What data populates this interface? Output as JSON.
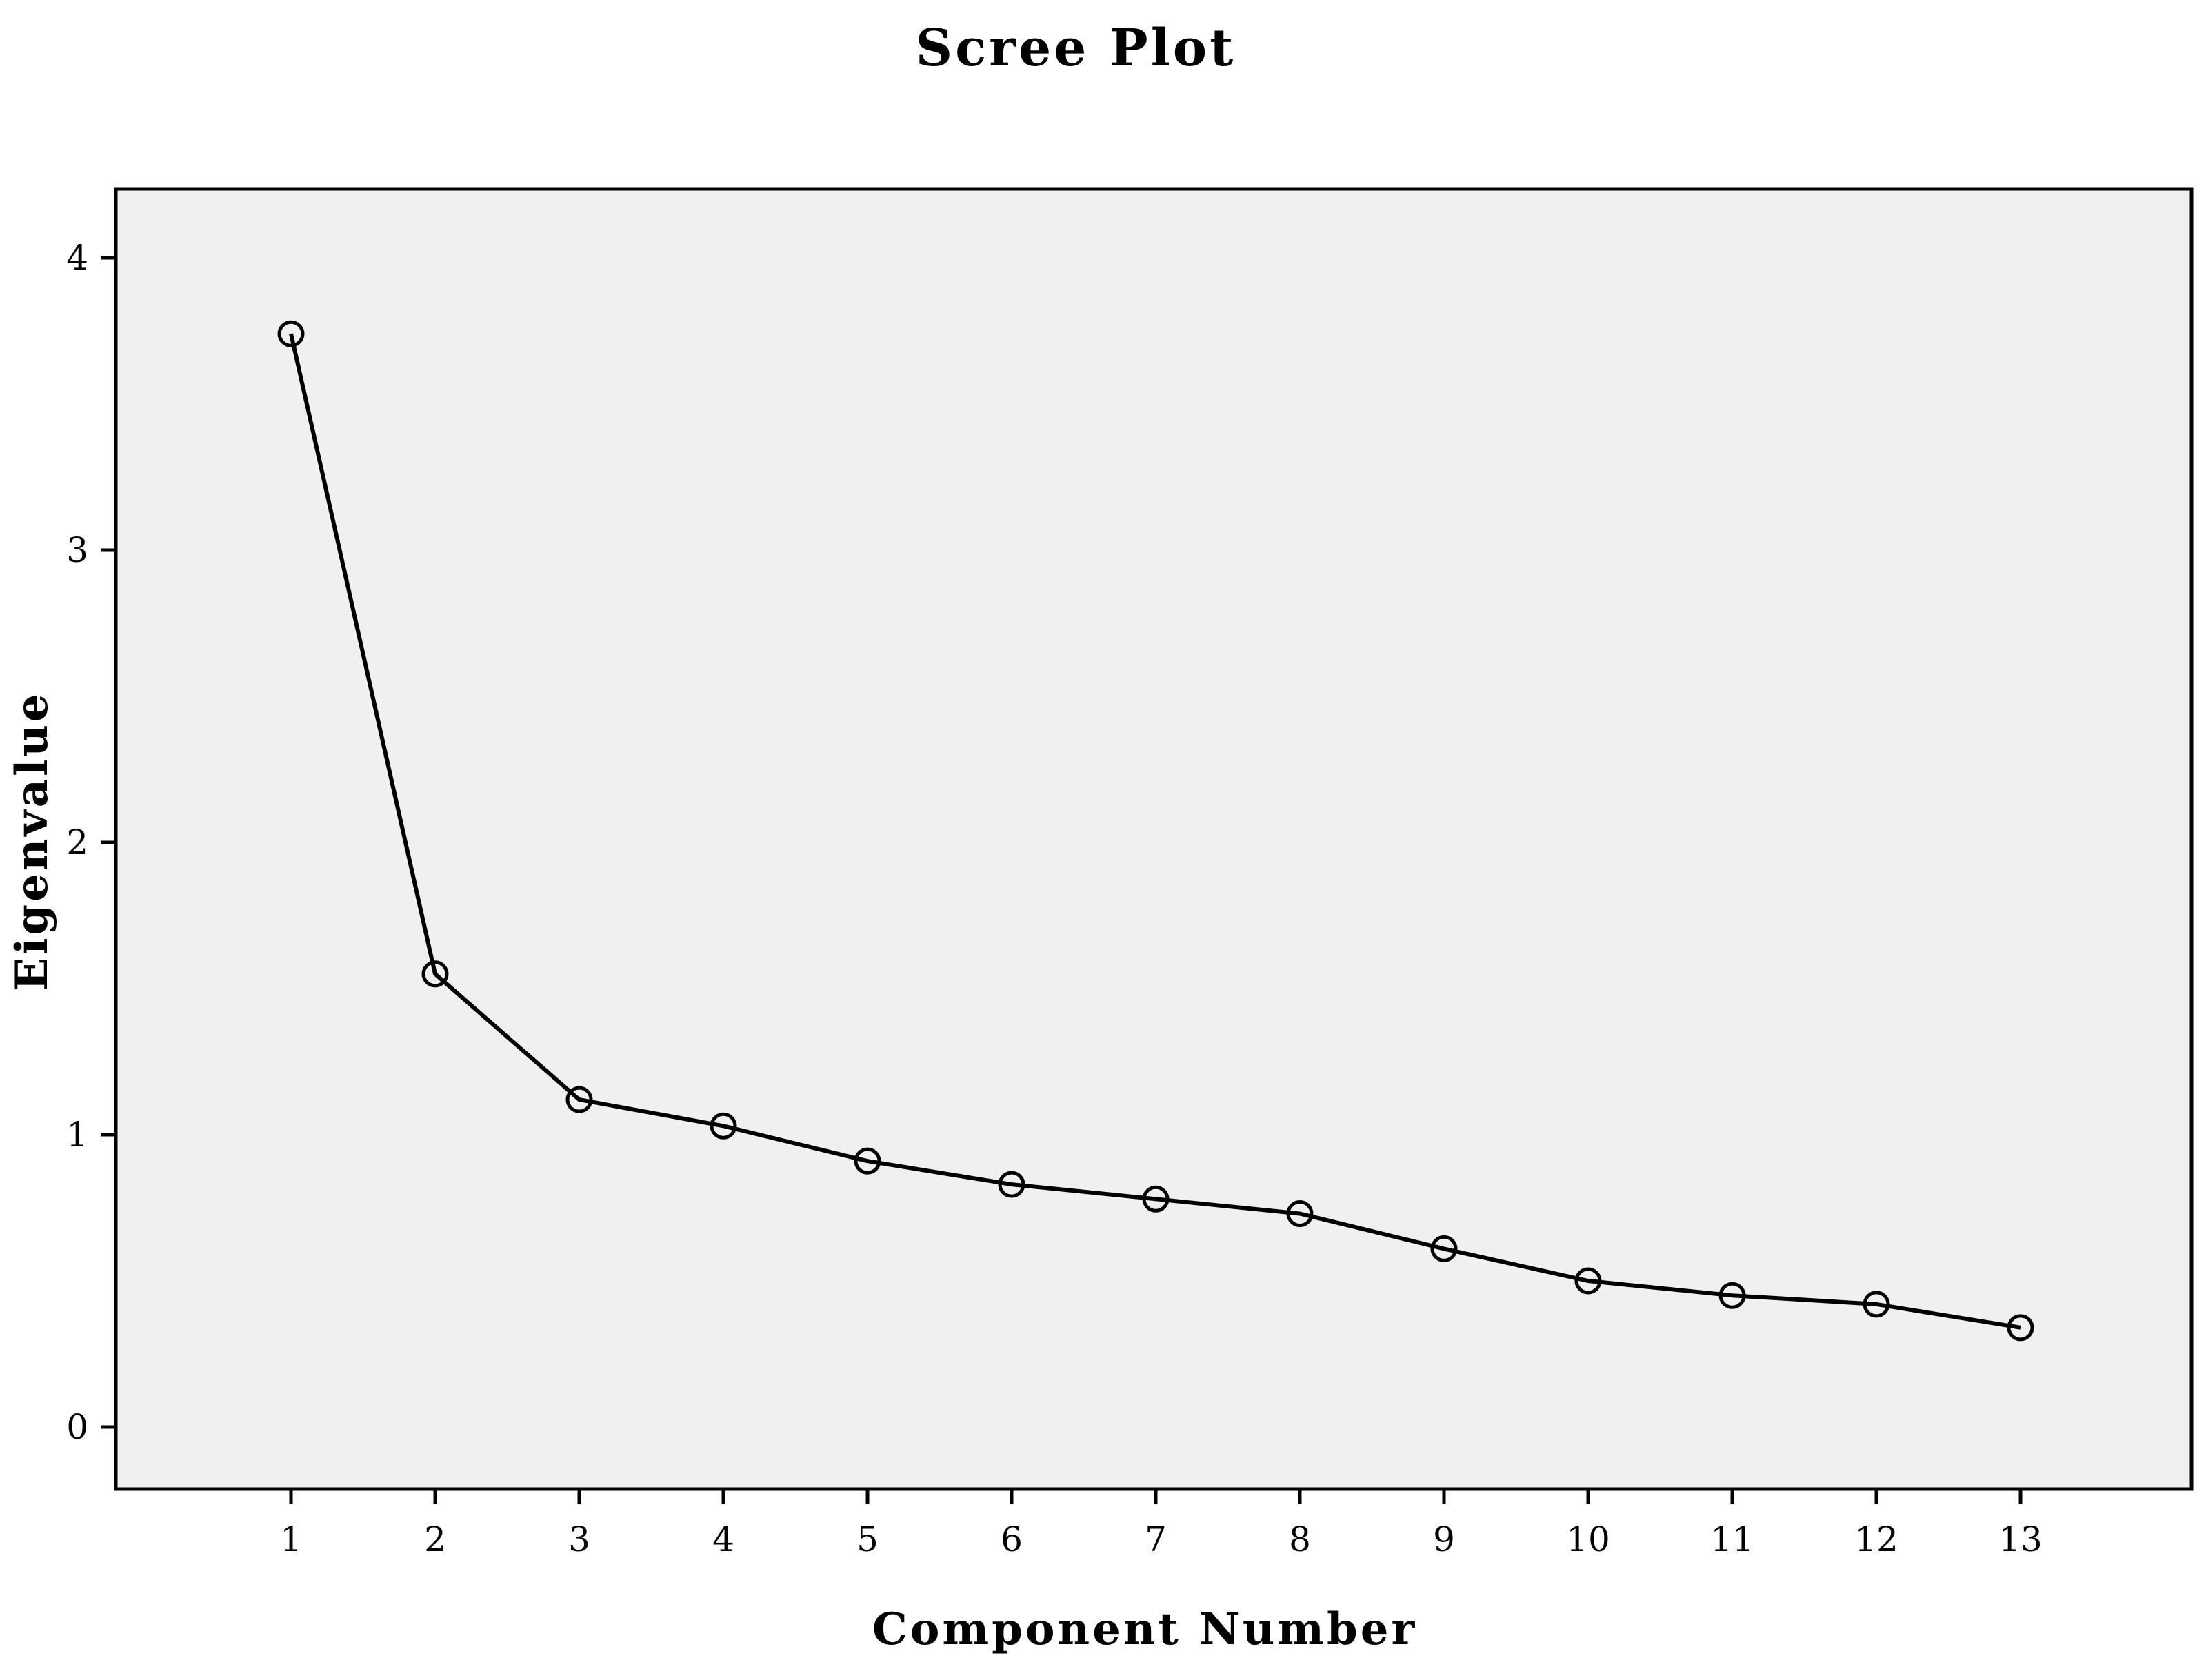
{
  "chart_data": {
    "type": "line",
    "title": "Scree Plot",
    "xlabel": "Component Number",
    "ylabel": "Eigenvalue",
    "x": [
      1,
      2,
      3,
      4,
      5,
      6,
      7,
      8,
      9,
      10,
      11,
      12,
      13
    ],
    "series": [
      {
        "values": [
          3.74,
          1.55,
          1.12,
          1.03,
          0.91,
          0.83,
          0.78,
          0.73,
          0.61,
          0.5,
          0.45,
          0.42,
          0.34
        ]
      }
    ],
    "xlim": [
      0,
      13.6
    ],
    "ylim": [
      0,
      4
    ],
    "x_ticks": [
      "1",
      "2",
      "3",
      "4",
      "5",
      "6",
      "7",
      "8",
      "9",
      "10",
      "11",
      "12",
      "13"
    ],
    "y_ticks": [
      "0",
      "1",
      "2",
      "3",
      "4"
    ],
    "grid": false,
    "legend": "none",
    "colors": {
      "plot_background": "#f0f0f0",
      "line": "#000000",
      "marker": "#000000",
      "frame": "#000000"
    }
  }
}
